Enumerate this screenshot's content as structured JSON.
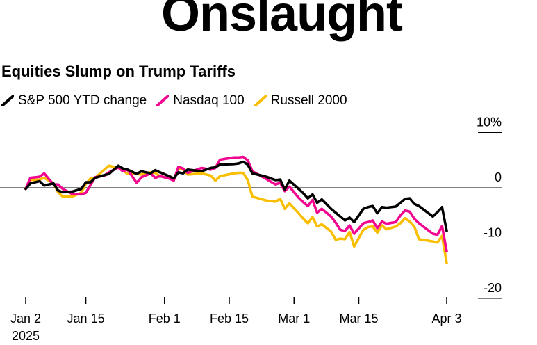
{
  "headline": "Onslaught",
  "chart_data": {
    "type": "line",
    "title": "Equities Slump on Trump Tariffs",
    "xlabel": "",
    "ylabel": "",
    "ylim": [
      -20,
      10
    ],
    "y_ticks": [
      {
        "value": 10,
        "label": "10%"
      },
      {
        "value": 0,
        "label": "0"
      },
      {
        "value": -10,
        "label": "-10"
      },
      {
        "value": -20,
        "label": "-20"
      }
    ],
    "x_ticks": [
      {
        "day": 0,
        "label": "Jan 2",
        "sublabel": "2025"
      },
      {
        "day": 13,
        "label": "Jan 15",
        "sublabel": ""
      },
      {
        "day": 30,
        "label": "Feb 1",
        "sublabel": ""
      },
      {
        "day": 44,
        "label": "Feb 15",
        "sublabel": ""
      },
      {
        "day": 58,
        "label": "Mar 1",
        "sublabel": ""
      },
      {
        "day": 72,
        "label": "Mar 15",
        "sublabel": ""
      },
      {
        "day": 91,
        "label": "Apr 3",
        "sublabel": ""
      }
    ],
    "series": [
      {
        "name": "S&P 500 YTD change",
        "color": "#000000",
        "x": [
          0,
          1,
          3,
          4,
          6,
          7,
          8,
          10,
          12,
          13,
          14,
          15,
          17,
          18,
          20,
          21,
          22,
          24,
          25,
          27,
          28,
          29,
          31,
          32,
          33,
          34,
          35,
          38,
          40,
          41,
          42,
          45,
          46,
          47,
          48,
          49,
          52,
          54,
          55,
          56,
          57,
          59,
          60,
          61,
          62,
          63,
          64,
          66,
          67,
          68,
          69,
          70,
          71,
          73,
          74,
          75,
          76,
          77,
          78,
          80,
          81,
          82,
          83,
          84,
          85,
          88,
          89,
          90,
          91
        ],
        "y": [
          -0.2,
          0.8,
          1.2,
          0.4,
          0.8,
          -0.5,
          -0.8,
          -0.7,
          -0.2,
          1.0,
          1.0,
          1.8,
          2.3,
          2.5,
          4.0,
          3.5,
          3.3,
          2.5,
          3.0,
          2.6,
          3.2,
          2.8,
          2.1,
          1.7,
          2.8,
          2.6,
          3.3,
          3.0,
          3.6,
          3.7,
          4.2,
          4.3,
          4.4,
          4.7,
          4.2,
          2.6,
          2.0,
          1.4,
          1.5,
          -0.3,
          1.3,
          -0.2,
          -1.0,
          -1.9,
          -1.2,
          -2.7,
          -2.1,
          -3.8,
          -4.5,
          -5.2,
          -5.9,
          -5.4,
          -6.2,
          -3.8,
          -3.5,
          -3.3,
          -4.6,
          -3.5,
          -3.6,
          -3.4,
          -2.7,
          -2.0,
          -1.9,
          -2.9,
          -3.3,
          -5.2,
          -4.4,
          -3.5,
          -7.8
        ]
      },
      {
        "name": "Nasdaq 100",
        "color": "#f2068f",
        "x": [
          0,
          1,
          3,
          4,
          6,
          7,
          8,
          10,
          12,
          13,
          14,
          15,
          17,
          18,
          20,
          21,
          22,
          24,
          25,
          27,
          28,
          29,
          31,
          32,
          33,
          34,
          35,
          38,
          40,
          41,
          42,
          45,
          46,
          47,
          48,
          49,
          52,
          54,
          55,
          56,
          57,
          59,
          60,
          61,
          62,
          63,
          64,
          66,
          67,
          68,
          69,
          70,
          71,
          73,
          74,
          75,
          76,
          77,
          78,
          80,
          81,
          82,
          83,
          84,
          85,
          88,
          89,
          90,
          91
        ],
        "y": [
          -0.2,
          1.8,
          2.0,
          2.6,
          0.6,
          0.6,
          -0.2,
          -1.1,
          -1.2,
          -0.9,
          0.5,
          1.9,
          2.2,
          2.8,
          3.7,
          3.0,
          3.3,
          0.9,
          1.9,
          2.6,
          1.8,
          2.1,
          1.7,
          1.3,
          3.8,
          3.5,
          2.7,
          3.6,
          3.3,
          3.6,
          5.1,
          5.5,
          5.5,
          5.6,
          5.0,
          3.0,
          1.6,
          0.6,
          0.9,
          -0.6,
          0.2,
          -1.8,
          -2.6,
          -3.3,
          -2.2,
          -4.5,
          -3.8,
          -5.2,
          -6.3,
          -7.6,
          -7.8,
          -6.8,
          -8.3,
          -6.4,
          -6.2,
          -5.9,
          -7.3,
          -6.1,
          -6.5,
          -6.2,
          -5.0,
          -4.1,
          -4.3,
          -5.6,
          -6.4,
          -8.3,
          -8.5,
          -6.9,
          -11.5
        ]
      },
      {
        "name": "Russell 2000",
        "color": "#f9be00",
        "x": [
          0,
          1,
          3,
          4,
          6,
          7,
          8,
          10,
          12,
          13,
          14,
          15,
          17,
          18,
          20,
          21,
          22,
          24,
          25,
          27,
          28,
          29,
          31,
          32,
          33,
          34,
          35,
          38,
          40,
          41,
          42,
          45,
          46,
          47,
          48,
          49,
          52,
          54,
          55,
          56,
          57,
          59,
          60,
          61,
          62,
          63,
          64,
          66,
          67,
          68,
          69,
          70,
          71,
          73,
          74,
          75,
          76,
          77,
          78,
          80,
          81,
          82,
          83,
          84,
          85,
          88,
          89,
          90,
          91
        ],
        "y": [
          -0.2,
          1.4,
          1.5,
          1.8,
          0.8,
          -0.8,
          -1.6,
          -1.6,
          -0.9,
          0.7,
          1.7,
          1.8,
          3.3,
          4.0,
          3.6,
          3.2,
          2.5,
          2.5,
          2.4,
          2.8,
          2.7,
          2.1,
          1.7,
          1.6,
          3.5,
          3.3,
          2.4,
          2.6,
          2.2,
          1.3,
          2.1,
          2.6,
          2.7,
          2.7,
          1.4,
          -1.6,
          -2.3,
          -2.5,
          -2.0,
          -3.8,
          -2.8,
          -4.6,
          -5.6,
          -6.4,
          -5.3,
          -7.0,
          -6.6,
          -7.9,
          -9.4,
          -9.2,
          -9.3,
          -8.0,
          -10.6,
          -7.6,
          -7.1,
          -7.0,
          -8.1,
          -6.8,
          -7.5,
          -7.0,
          -6.4,
          -5.5,
          -6.1,
          -7.0,
          -9.3,
          -9.7,
          -9.9,
          -8.7,
          -13.6
        ]
      }
    ]
  }
}
